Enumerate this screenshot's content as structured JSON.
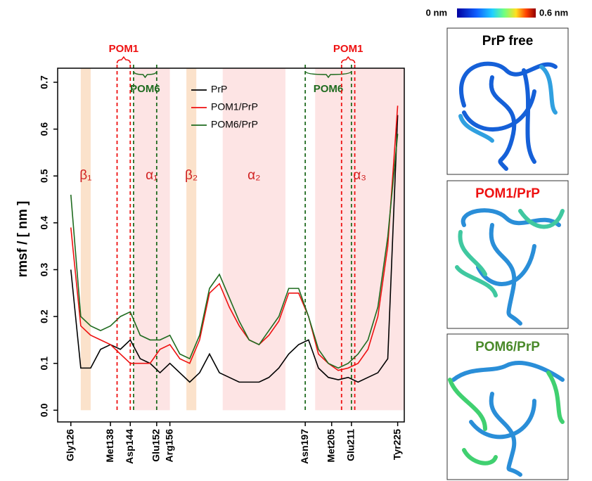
{
  "chart_data": {
    "type": "line",
    "ylabel": "rmsf / [ nm ]",
    "x": [
      126,
      129,
      132,
      135,
      138,
      141,
      144,
      147,
      150,
      153,
      156,
      159,
      162,
      165,
      168,
      171,
      174,
      177,
      180,
      183,
      186,
      189,
      192,
      195,
      198,
      201,
      204,
      207,
      210,
      213,
      216,
      219,
      222,
      225
    ],
    "series": [
      {
        "name": "PrP",
        "color": "#000000",
        "values": [
          0.3,
          0.09,
          0.09,
          0.13,
          0.14,
          0.13,
          0.15,
          0.11,
          0.1,
          0.08,
          0.1,
          0.08,
          0.06,
          0.08,
          0.12,
          0.08,
          0.07,
          0.06,
          0.06,
          0.06,
          0.07,
          0.09,
          0.12,
          0.14,
          0.15,
          0.09,
          0.07,
          0.065,
          0.07,
          0.06,
          0.07,
          0.08,
          0.11,
          0.63
        ]
      },
      {
        "name": "POM1/PrP",
        "color": "#ee1111",
        "values": [
          0.39,
          0.18,
          0.16,
          0.15,
          0.14,
          0.12,
          0.1,
          0.1,
          0.1,
          0.13,
          0.14,
          0.11,
          0.1,
          0.15,
          0.25,
          0.27,
          0.22,
          0.18,
          0.15,
          0.14,
          0.16,
          0.19,
          0.25,
          0.25,
          0.2,
          0.12,
          0.1,
          0.085,
          0.09,
          0.1,
          0.13,
          0.2,
          0.35,
          0.65
        ]
      },
      {
        "name": "POM6/PrP",
        "color": "#1f6b1f",
        "values": [
          0.46,
          0.2,
          0.18,
          0.17,
          0.18,
          0.2,
          0.21,
          0.16,
          0.15,
          0.15,
          0.16,
          0.12,
          0.11,
          0.16,
          0.26,
          0.29,
          0.24,
          0.19,
          0.15,
          0.14,
          0.17,
          0.2,
          0.26,
          0.26,
          0.2,
          0.13,
          0.1,
          0.09,
          0.1,
          0.12,
          0.15,
          0.22,
          0.37,
          0.59
        ]
      }
    ],
    "xlim": [
      122,
      227
    ],
    "ylim": [
      -0.025,
      0.73
    ],
    "xticks": [
      {
        "value": 126,
        "label": "Gly126"
      },
      {
        "value": 138,
        "label": "Met138"
      },
      {
        "value": 144,
        "label": "Asp144"
      },
      {
        "value": 152,
        "label": "Glu152"
      },
      {
        "value": 156,
        "label": "Arg156"
      },
      {
        "value": 197,
        "label": "Asn197"
      },
      {
        "value": 205,
        "label": "Met205"
      },
      {
        "value": 211,
        "label": "Glu211"
      },
      {
        "value": 225,
        "label": "Tyr225"
      }
    ],
    "yticks": [
      {
        "value": 0,
        "label": "0.0"
      },
      0.1,
      0.2,
      0.3,
      0.4,
      0.5,
      0.6,
      0.7
    ],
    "regions": [
      {
        "label": "β₁",
        "start": 129,
        "end": 132,
        "color": "#fbe2cb"
      },
      {
        "label": "α₁",
        "start": 145,
        "end": 156,
        "color": "#fde4e4"
      },
      {
        "label": "β₂",
        "start": 161,
        "end": 164,
        "color": "#fbe2cb"
      },
      {
        "label": "α₂",
        "start": 172,
        "end": 191,
        "color": "#fde4e4"
      },
      {
        "label": "α₃",
        "start": 200,
        "end": 227,
        "color": "#fde4e4"
      }
    ],
    "epitopes": [
      {
        "label": "POM1",
        "color": "#ee1111",
        "range": [
          140,
          144
        ]
      },
      {
        "label": "POM6",
        "color": "#1f6b1f",
        "range": [
          145,
          152
        ]
      },
      {
        "label": "POM6",
        "color": "#1f6b1f",
        "range": [
          197,
          211
        ]
      },
      {
        "label": "POM1",
        "color": "#ee1111",
        "range": [
          208,
          212
        ]
      }
    ]
  },
  "colorbar": {
    "min_label": "0 nm",
    "max_label": "0.6 nm"
  },
  "panels": [
    {
      "title": "PrP free",
      "color": "#000000"
    },
    {
      "title": "POM1/PrP",
      "color": "#ee1111"
    },
    {
      "title": "POM6/PrP",
      "color": "#4a8a2a"
    }
  ]
}
